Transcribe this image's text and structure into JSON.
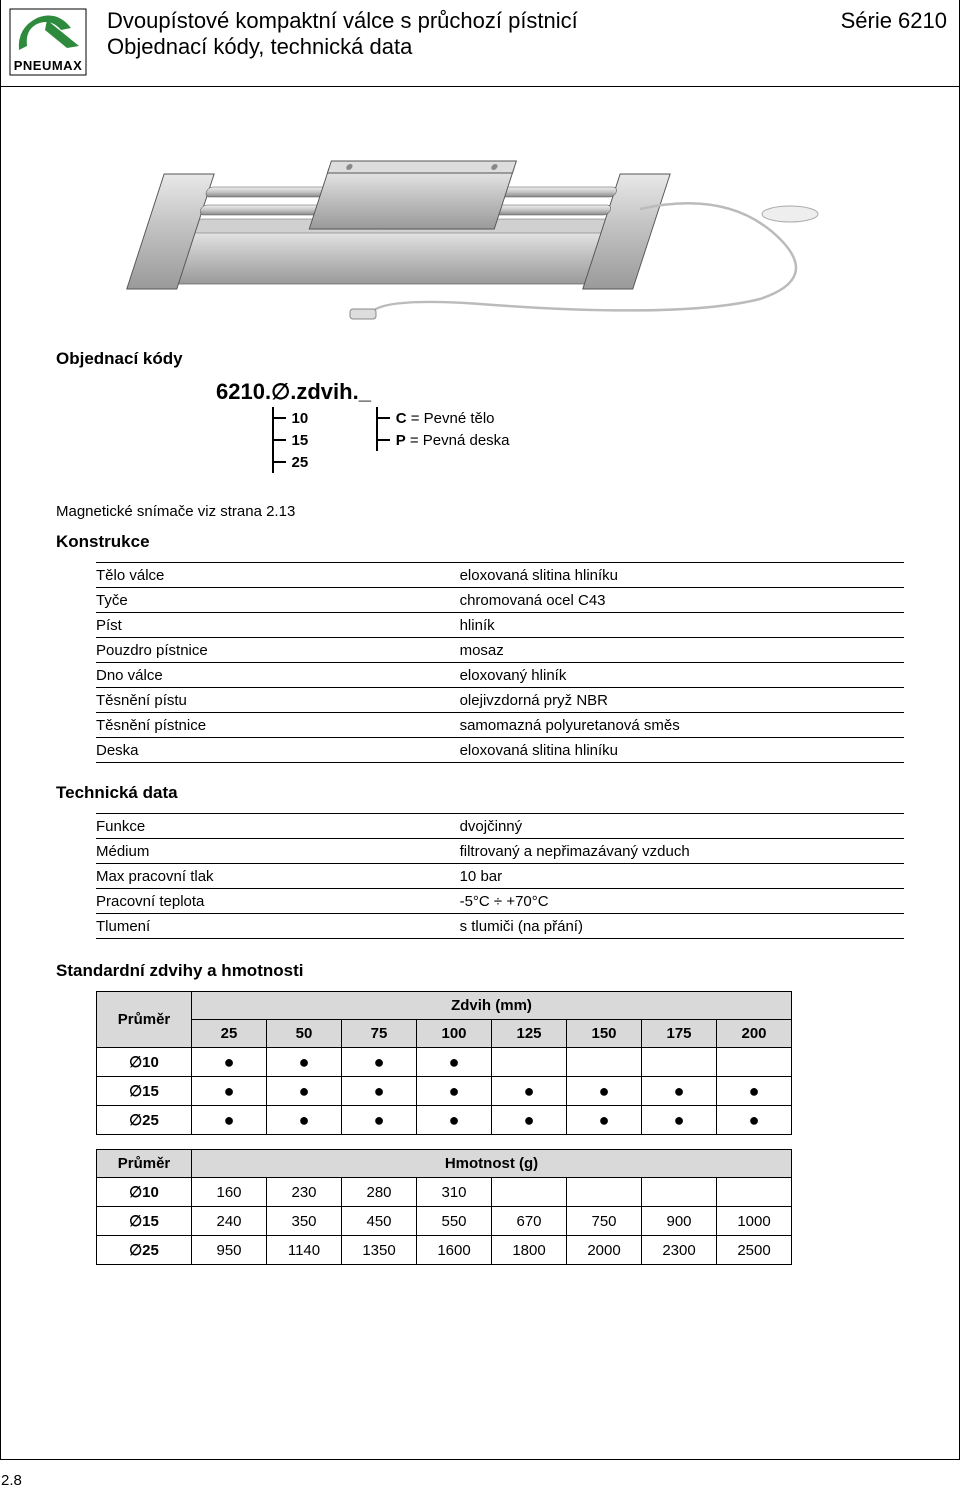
{
  "header": {
    "title": "Dvoupístové kompaktní válce s průchozí pístnicí",
    "subtitle": "Objednací kódy, technická data",
    "series": "Série 6210",
    "brand": "PNEUMAX"
  },
  "ordering": {
    "heading": "Objednací kódy",
    "code_prefix": "6210.",
    "code_diam": "∅",
    "code_mid": ".zdvih.",
    "code_suffix": " _",
    "diameters": [
      "10",
      "15",
      "25"
    ],
    "suffix_options": [
      {
        "code": "C",
        "desc": "= Pevné tělo"
      },
      {
        "code": "P",
        "desc": "= Pevná deska"
      }
    ],
    "magnetic_note": "Magnetické snímače viz strana 2.13"
  },
  "construction": {
    "heading": "Konstrukce",
    "rows": [
      {
        "k": "Tělo válce",
        "v": "eloxovaná slitina hliníku"
      },
      {
        "k": "Tyče",
        "v": "chromovaná ocel C43"
      },
      {
        "k": "Píst",
        "v": "hliník"
      },
      {
        "k": "Pouzdro pístnice",
        "v": "mosaz"
      },
      {
        "k": "Dno válce",
        "v": "eloxovaný hliník"
      },
      {
        "k": "Těsnění pístu",
        "v": "olejivzdorná pryž NBR"
      },
      {
        "k": "Těsnění pístnice",
        "v": "samomazná polyuretanová směs"
      },
      {
        "k": "Deska",
        "v": "eloxovaná slitina hliníku"
      }
    ]
  },
  "technical": {
    "heading": "Technická data",
    "rows": [
      {
        "k": "Funkce",
        "v": "dvojčinný"
      },
      {
        "k": "Médium",
        "v": "filtrovaný a nepřimazávaný vzduch"
      },
      {
        "k": "Max pracovní tlak",
        "v": "10 bar"
      },
      {
        "k": "Pracovní teplota",
        "v": "-5°C ÷ +70°C"
      },
      {
        "k": "Tlumení",
        "v": "s tlumiči (na přání)"
      }
    ]
  },
  "strokes_weights": {
    "heading": "Standardní zdvihy a hmotnosti",
    "diameter_label": "Průměr",
    "stroke_label": "Zdvih (mm)",
    "weight_label": "Hmotnost (g)",
    "stroke_cols": [
      "25",
      "50",
      "75",
      "100",
      "125",
      "150",
      "175",
      "200"
    ],
    "stroke_matrix": {
      "rows": [
        "∅10",
        "∅15",
        "∅25"
      ],
      "dots": [
        [
          true,
          true,
          true,
          true,
          false,
          false,
          false,
          false
        ],
        [
          true,
          true,
          true,
          true,
          true,
          true,
          true,
          true
        ],
        [
          true,
          true,
          true,
          true,
          true,
          true,
          true,
          true
        ]
      ]
    },
    "weight_matrix": {
      "rows": [
        "∅10",
        "∅15",
        "∅25"
      ],
      "vals": [
        [
          "160",
          "230",
          "280",
          "310",
          "",
          "",
          "",
          ""
        ],
        [
          "240",
          "350",
          "450",
          "550",
          "670",
          "750",
          "900",
          "1000"
        ],
        [
          "950",
          "1140",
          "1350",
          "1600",
          "1800",
          "2000",
          "2300",
          "2500"
        ]
      ]
    }
  },
  "footer": {
    "page": "2.8"
  },
  "colors": {
    "table_header_bg": "#d9d9d9",
    "border": "#000000",
    "text": "#000000",
    "logo_green": "#2e8b3d"
  }
}
